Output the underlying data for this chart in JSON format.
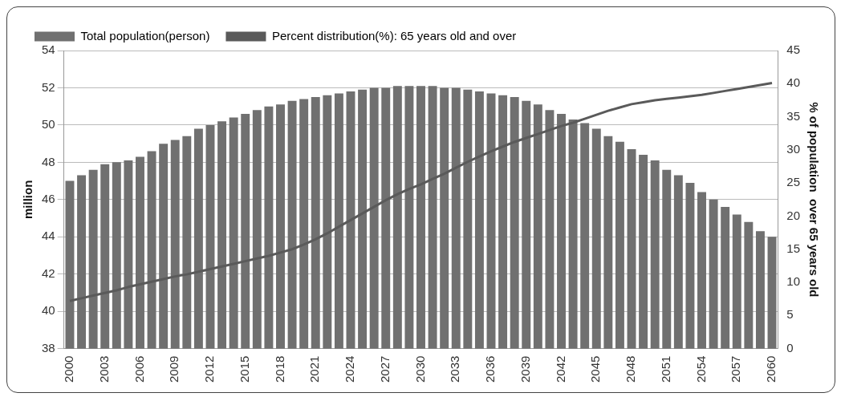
{
  "chart_data": {
    "type": "bar",
    "ylabel": "million",
    "y2label": "% of population  over 65 years old",
    "categories": [
      "2000",
      null,
      null,
      "2003",
      null,
      null,
      "2006",
      null,
      null,
      "2009",
      null,
      null,
      "2012",
      null,
      null,
      "2015",
      null,
      null,
      "2018",
      null,
      null,
      "2021",
      null,
      null,
      "2024",
      null,
      null,
      "2027",
      null,
      null,
      "2030",
      null,
      null,
      "2033",
      null,
      null,
      "2036",
      null,
      null,
      "2039",
      null,
      null,
      "2042",
      null,
      null,
      "2045",
      null,
      null,
      "2048",
      null,
      null,
      "2051",
      null,
      null,
      "2054",
      null,
      null,
      "2057",
      null,
      null,
      "2060"
    ],
    "series": [
      {
        "name": "Total population(person)",
        "color": "#707070",
        "values": [
          47.0,
          47.3,
          47.6,
          47.9,
          48.0,
          48.1,
          48.3,
          48.6,
          49.0,
          49.2,
          49.4,
          49.8,
          50.0,
          50.2,
          50.4,
          50.6,
          50.8,
          51.0,
          51.1,
          51.3,
          51.4,
          51.5,
          51.6,
          51.7,
          51.8,
          51.9,
          52.0,
          52.0,
          52.1,
          52.1,
          52.1,
          52.1,
          52.0,
          52.0,
          51.9,
          51.8,
          51.7,
          51.6,
          51.5,
          51.3,
          51.1,
          50.8,
          50.6,
          50.3,
          50.1,
          49.8,
          49.4,
          49.1,
          48.7,
          48.4,
          48.1,
          47.6,
          47.3,
          46.9,
          46.4,
          46.0,
          45.6,
          45.2,
          44.8,
          44.3,
          44.0
        ]
      },
      {
        "name": "Percent distribution(%): 65 years old and over",
        "type": "line",
        "axis": "y2",
        "color": "#5a5a5a",
        "values": [
          7.2,
          7.6,
          8.0,
          8.4,
          8.8,
          9.3,
          9.7,
          10.1,
          10.5,
          10.9,
          11.2,
          11.6,
          12.0,
          12.4,
          12.8,
          13.2,
          13.6,
          14.0,
          14.5,
          15.0,
          15.7,
          16.5,
          17.4,
          18.4,
          19.4,
          20.4,
          21.4,
          22.4,
          23.3,
          24.1,
          24.8,
          25.6,
          26.4,
          27.3,
          28.2,
          29.0,
          29.8,
          30.5,
          31.2,
          31.8,
          32.4,
          33.0,
          33.6,
          34.1,
          34.7,
          35.3,
          35.9,
          36.4,
          36.9,
          37.2,
          37.5,
          37.7,
          37.9,
          38.1,
          38.3,
          38.6,
          38.9,
          39.2,
          39.5,
          39.8,
          40.1
        ]
      }
    ],
    "ylim": [
      38,
      54
    ],
    "yticks": [
      38,
      40,
      42,
      44,
      46,
      48,
      50,
      52,
      54
    ],
    "y2lim": [
      0,
      45
    ],
    "y2ticks": [
      0,
      5,
      10,
      15,
      20,
      25,
      30,
      35,
      40,
      45
    ],
    "grid": "y",
    "legend": "top",
    "marker": "none"
  }
}
